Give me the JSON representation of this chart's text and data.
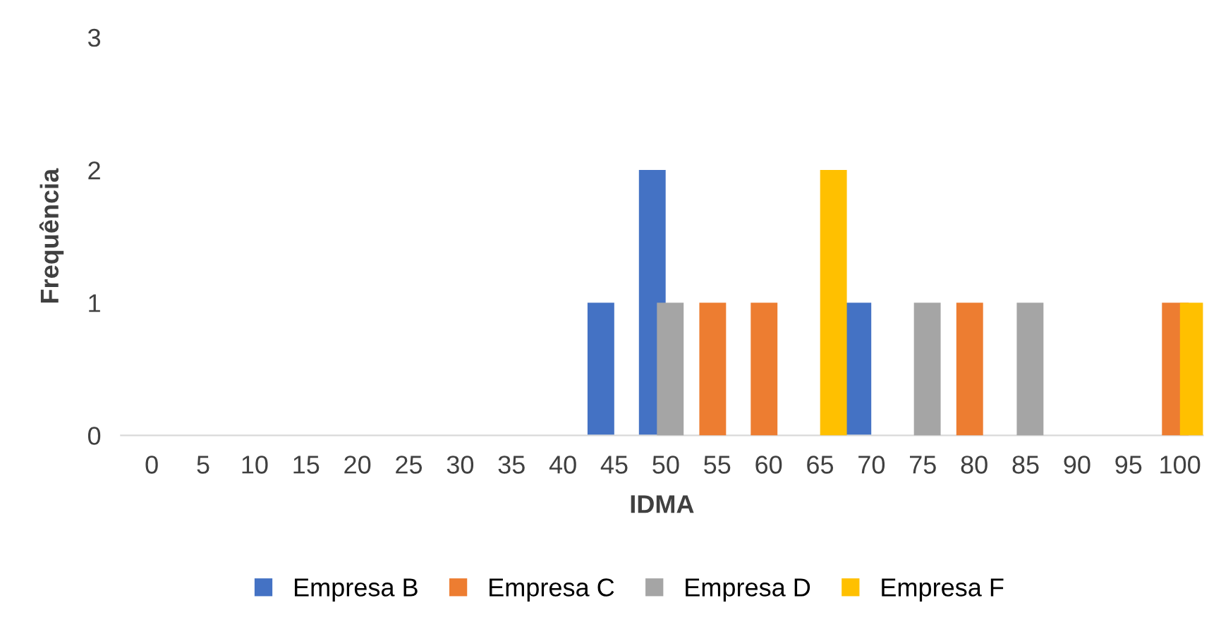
{
  "chart_data": {
    "type": "bar",
    "xlabel": "IDMA",
    "ylabel": "Frequência",
    "categories": [
      "0",
      "5",
      "10",
      "15",
      "20",
      "25",
      "30",
      "35",
      "40",
      "45",
      "50",
      "55",
      "60",
      "65",
      "70",
      "75",
      "80",
      "85",
      "90",
      "95",
      "100"
    ],
    "series": [
      {
        "name": "Empresa B",
        "color": "#4472c4",
        "values": [
          0,
          0,
          0,
          0,
          0,
          0,
          0,
          0,
          0,
          1,
          2,
          0,
          0,
          0,
          1,
          0,
          0,
          0,
          0,
          0,
          0
        ]
      },
      {
        "name": "Empresa C",
        "color": "#ed7d31",
        "values": [
          0,
          0,
          0,
          0,
          0,
          0,
          0,
          0,
          0,
          0,
          0,
          1,
          1,
          0,
          0,
          0,
          1,
          0,
          0,
          0,
          1
        ]
      },
      {
        "name": "Empresa D",
        "color": "#a5a5a5",
        "values": [
          0,
          0,
          0,
          0,
          0,
          0,
          0,
          0,
          0,
          0,
          1,
          0,
          0,
          0,
          0,
          1,
          0,
          1,
          0,
          0,
          0
        ]
      },
      {
        "name": "Empresa F",
        "color": "#ffc000",
        "values": [
          0,
          0,
          0,
          0,
          0,
          0,
          0,
          0,
          0,
          0,
          0,
          0,
          0,
          2,
          0,
          0,
          0,
          0,
          0,
          0,
          1
        ]
      }
    ],
    "ylim": [
      0,
      3
    ],
    "yticks": [
      0,
      1,
      2,
      3
    ],
    "grid": false,
    "legend": "bottom"
  }
}
